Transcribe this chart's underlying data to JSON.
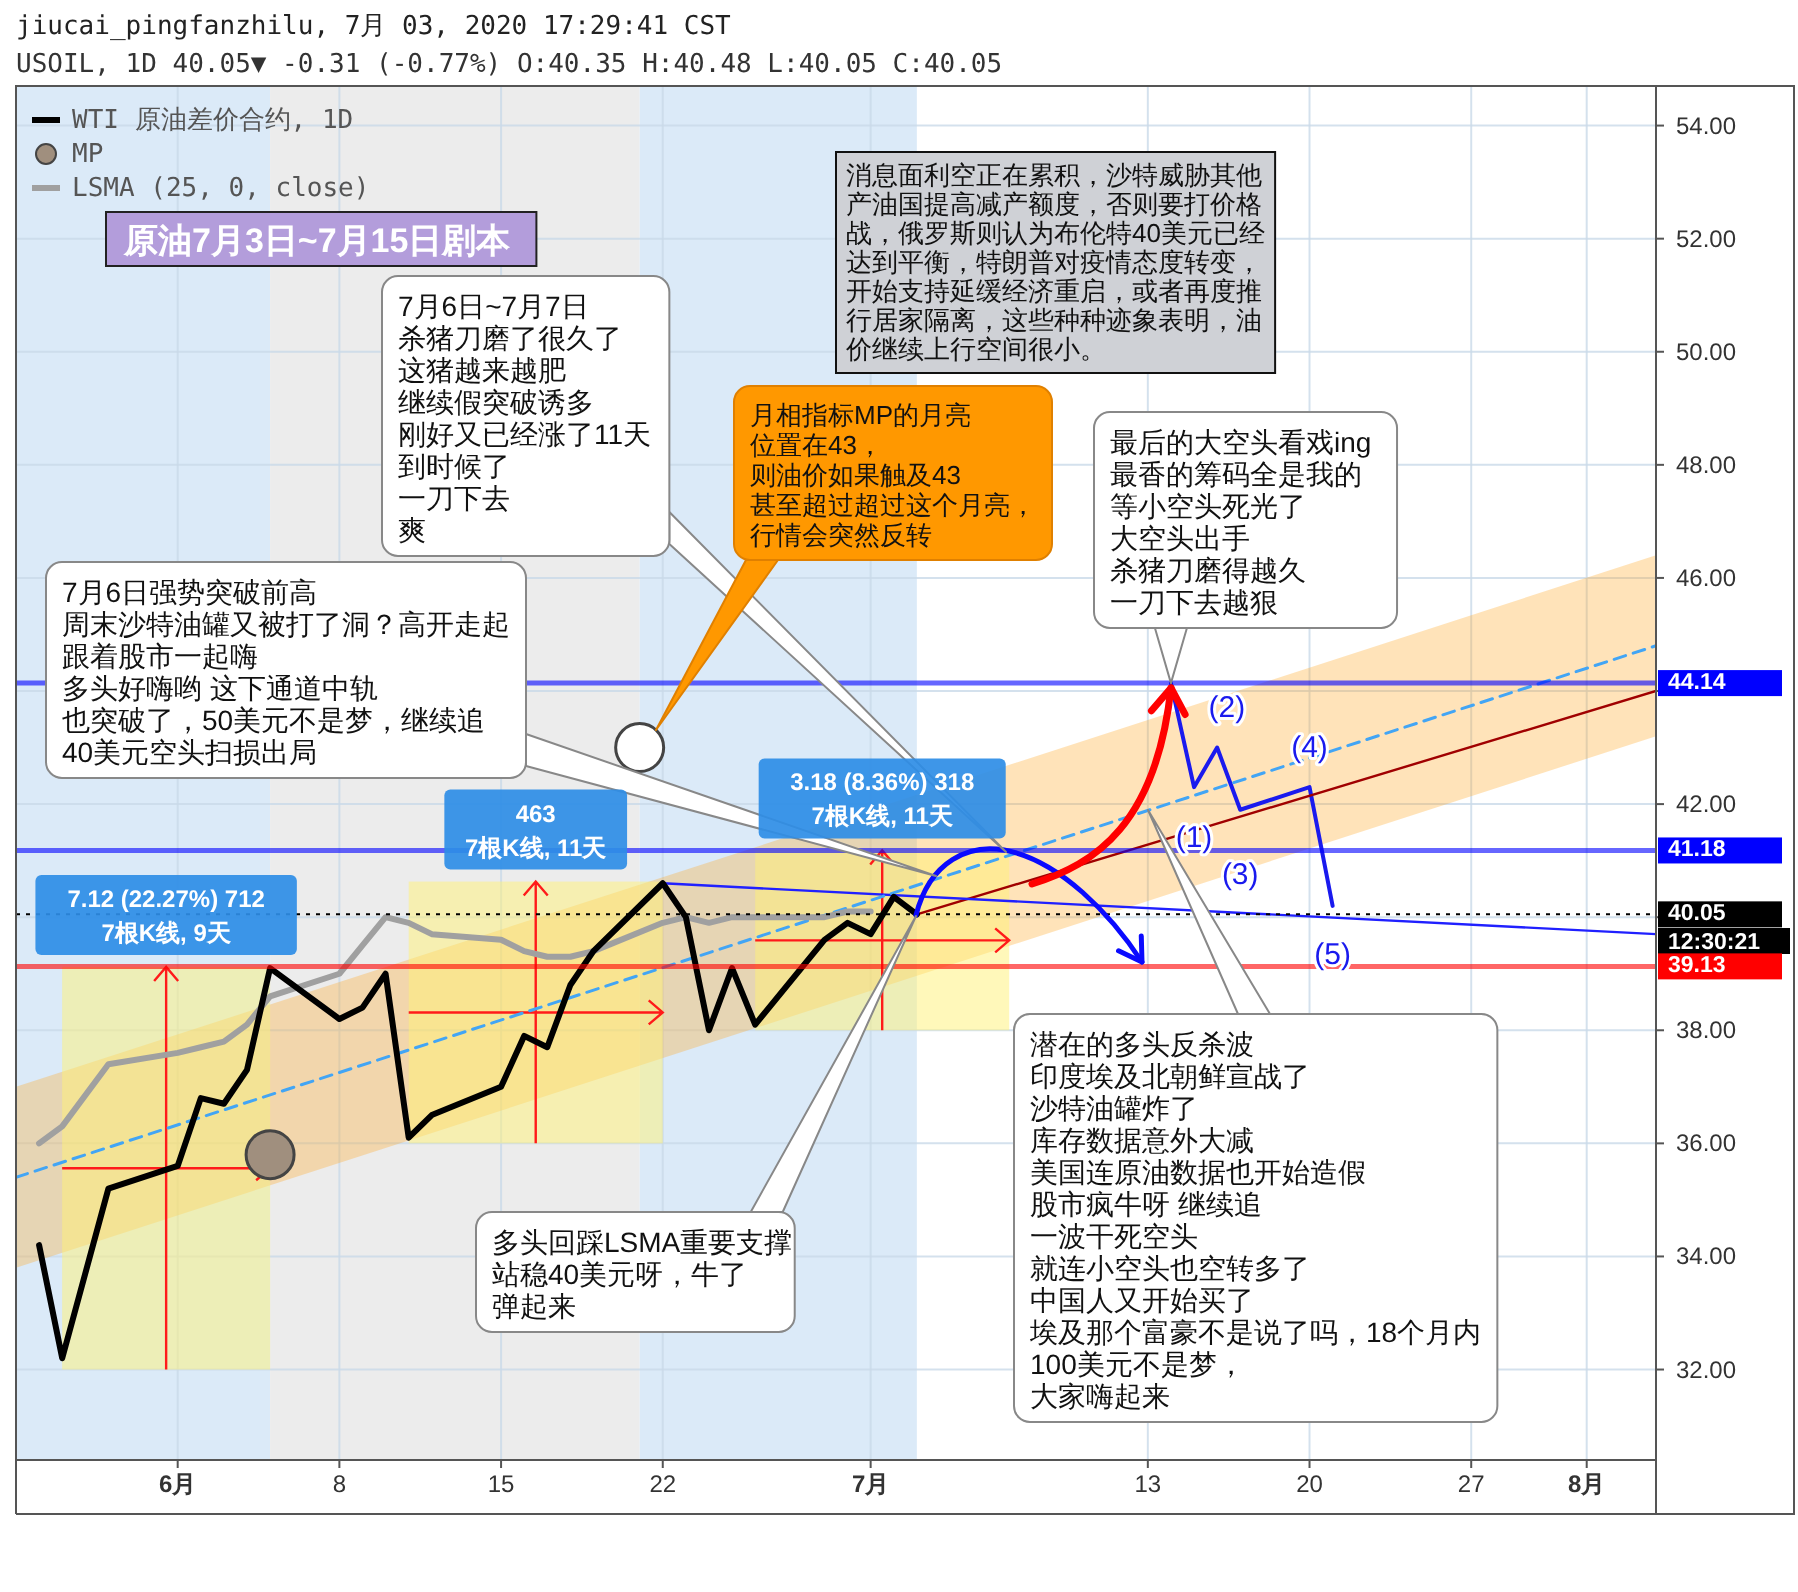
{
  "chart_data": {
    "type": "line",
    "title": "原油7月3日~7月15日剧本",
    "subtitle": "jiucai_pingfanzhilu, 7月 03, 2020 17:29:41 CST",
    "x": [
      "2020-05-26",
      "2020-05-27",
      "2020-05-29",
      "2020-06-01",
      "2020-06-02",
      "2020-06-03",
      "2020-06-04",
      "2020-06-05",
      "2020-06-08",
      "2020-06-09",
      "2020-06-10",
      "2020-06-11",
      "2020-06-12",
      "2020-06-15",
      "2020-06-16",
      "2020-06-17",
      "2020-06-18",
      "2020-06-19",
      "2020-06-22",
      "2020-06-23",
      "2020-06-24",
      "2020-06-25",
      "2020-06-26",
      "2020-06-29",
      "2020-06-30",
      "2020-07-01",
      "2020-07-02",
      "2020-07-03"
    ],
    "series": [
      {
        "name": "WTI 原油差价合约, 1D",
        "color": "#000000",
        "values": [
          34.2,
          32.2,
          35.2,
          35.6,
          36.8,
          36.7,
          37.3,
          39.1,
          38.2,
          38.4,
          39.0,
          36.1,
          36.5,
          37.0,
          37.9,
          37.7,
          38.8,
          39.4,
          40.6,
          40.0,
          38.0,
          39.1,
          38.1,
          39.6,
          39.9,
          39.7,
          40.36,
          40.05
        ]
      },
      {
        "name": "MP",
        "type": "scatter",
        "marker": "circle",
        "color": "#a08f7e",
        "colors": [
          "#a08f7e",
          "#ffffff"
        ],
        "x": [
          "2020-06-05",
          "2020-06-21"
        ],
        "values": [
          35.8,
          43.0
        ]
      },
      {
        "name": "LSMA (25, 0, close)",
        "color": "#a0a0a0",
        "x": [
          "2020-05-26",
          "2020-05-27",
          "2020-05-29",
          "2020-06-01",
          "2020-06-02",
          "2020-06-03",
          "2020-06-04",
          "2020-06-05",
          "2020-06-08",
          "2020-06-09",
          "2020-06-10",
          "2020-06-11",
          "2020-06-12",
          "2020-06-15",
          "2020-06-16",
          "2020-06-17",
          "2020-06-18",
          "2020-06-19",
          "2020-06-22",
          "2020-06-23",
          "2020-06-24",
          "2020-06-25",
          "2020-06-26",
          "2020-06-29",
          "2020-06-30",
          "2020-07-01"
        ],
        "values": [
          36.0,
          36.3,
          37.4,
          37.6,
          37.7,
          37.8,
          38.1,
          38.6,
          39.0,
          39.5,
          40.0,
          39.9,
          39.7,
          39.6,
          39.4,
          39.3,
          39.3,
          39.4,
          39.9,
          40.0,
          39.9,
          40.0,
          40.0,
          40.0,
          40.1,
          40.1
        ]
      },
      {
        "color": "#42a5f5",
        "line_style": "dashed",
        "x": [
          "2020-05-25",
          "2020-08-04"
        ],
        "values": [
          35.4,
          44.8
        ],
        "lower": [
          33.8,
          43.2
        ],
        "upper": [
          37.0,
          46.4
        ]
      },
      {
        "type": "bar",
        "color": "#fff176",
        "x": [
          "2020-05-31T12:00",
          "2020-06-16T12:00",
          "2020-07-01T12:00"
        ],
        "base": [
          32.0,
          36.0,
          38.0
        ],
        "values": [
          7.12,
          4.63,
          3.18
        ],
        "value_labels": [
          "7.12 (22.27%) 712\n7根K线, 9天",
          null,
          "3.18 (8.36%) 318\n7根K线, 11天"
        ]
      },
      {
        "color": "#2020ff",
        "x": [
          "2020-06-22",
          "2020-08-04"
        ],
        "values": [
          40.6,
          39.7
        ]
      },
      {
        "color": "#a00000",
        "x": [
          "2020-07-03",
          "2020-08-04"
        ],
        "values": [
          40.05,
          44.0
        ]
      },
      {
        "color": "#1a1aee",
        "x": [
          "2020-07-14",
          "2020-07-15",
          "2020-07-16",
          "2020-07-17",
          "2020-07-20",
          "2020-07-21"
        ],
        "values": [
          44.14,
          42.3,
          43.0,
          41.9,
          42.3,
          40.2
        ]
      }
    ],
    "xlim": [
      "2020-05-25",
      "2020-08-04"
    ],
    "xticks": [
      {
        "value": "2020-06-01",
        "label": "6月"
      },
      {
        "value": "2020-06-08",
        "label": "8"
      },
      {
        "value": "2020-06-15",
        "label": "15"
      },
      {
        "value": "2020-06-22",
        "label": "22"
      },
      {
        "value": "2020-07-01",
        "label": "7月"
      },
      {
        "value": "2020-07-13",
        "label": "13"
      },
      {
        "value": "2020-07-20",
        "label": "20"
      },
      {
        "value": "2020-07-27",
        "label": "27"
      },
      {
        "value": "2020-08-01",
        "label": "8月"
      }
    ],
    "ylim": [
      30.4,
      54.7
    ],
    "yticks": [
      {
        "value": 32,
        "label": "32.00"
      },
      {
        "value": 34,
        "label": "34.00"
      },
      {
        "value": 36,
        "label": "36.00"
      },
      {
        "value": 38,
        "label": "38.00"
      },
      {
        "value": 40,
        "label": null
      },
      {
        "value": 42,
        "label": "42.00"
      },
      {
        "value": 44,
        "label": null
      },
      {
        "value": 46,
        "label": "46.00"
      },
      {
        "value": 48,
        "label": "48.00"
      },
      {
        "value": 50,
        "label": "50.00"
      },
      {
        "value": 52,
        "label": "52.00"
      },
      {
        "value": 54,
        "label": "54.00"
      }
    ],
    "grid": true,
    "legend": "top left",
    "bands": [
      {
        "axis": "x",
        "from": "2020-05-25",
        "to": "2020-06-05",
        "color": "#dbeaf8"
      },
      {
        "axis": "x",
        "from": "2020-06-05",
        "to": "2020-06-21",
        "color": "#ececec"
      },
      {
        "axis": "x",
        "from": "2020-06-21",
        "to": "2020-07-03",
        "color": "#dbeaf8"
      }
    ],
    "ref_lines": [
      {
        "axis": "y",
        "value": 44.14,
        "label": "44.14",
        "color": "#0000ff"
      },
      {
        "axis": "y",
        "value": 41.18,
        "label": "41.18",
        "color": "#0000ff"
      },
      {
        "axis": "y",
        "value": 40.05,
        "label": "40.05",
        "color": "#000000",
        "line_style": "dotted"
      },
      {
        "axis": "y",
        "value": 39.13,
        "label": "39.13",
        "color": "#ff0000"
      }
    ],
    "annotations": [
      "USOIL, 1D 40.05▼ -0.31 (-0.77%) O:40.35 H:40.48 L:40.05 C:40.05",
      "12:30:21",
      "消息面利空正在累积，沙特威胁其他产油国提高减产额度，否则要打价格战，俄罗斯则认为布伦特40美元已经达到平衡，特朗普对疫情态度转变，开始支持延缓经济重启，或者再度推行居家隔离，这些种种迹象表明，油价继续上行空间很小。",
      "7月6日~7月7日杀猪刀磨了很久了这猪越来越肥继续假突破诱多刚好又已经涨了11天到时候了一刀下去爽",
      "月相指标MP的月亮位置在43，则油价如果触及43甚至超过超过这个月亮，行情会突然反转",
      "7月6日强势突破前高周末沙特油罐又被打了洞？高开走起跟着股市一起嗨多头好嗨哟 这下通道中轨也突破了，50美元不是梦，继续追40美元空头扫损出局",
      {
        "text": "最后的大空头看戏ing最香的筹码全是我的等小空头死光了大空头出手杀猪刀磨得越久一刀下去越狠",
        "x": "2020-07-14",
        "y": 44.14
      },
      "多头回踩LSMA重要支撑站稳40美元呀，牛了弹起来",
      "潜在的多头反杀波印度埃及北朝鲜宣战了沙特油罐炸了库存数据意外大减美国连原油数据也开始造假股市疯牛呀 继续追一波干死空头就连小空头也空转多了中国人又开始买了埃及那个富豪不是说了吗，18个月内100美元不是梦，大家嗨起来",
      {
        "text": "(1)",
        "x": "2020-07-15",
        "y": 42.3
      },
      {
        "text": "(2)",
        "x": "2020-07-14",
        "y": 44.14
      },
      {
        "text": "(3)",
        "x": "2020-07-17",
        "y": 41.9
      },
      {
        "text": "(4)",
        "x": "2020-07-20",
        "y": 42.3
      },
      {
        "text": "(5)",
        "x": "2020-07-21",
        "y": 40.2
      },
      {
        "text": "463\n7根K线, 11天",
        "x": "2020-06-16T12:00",
        "y": 40.63
      }
    ]
  }
}
